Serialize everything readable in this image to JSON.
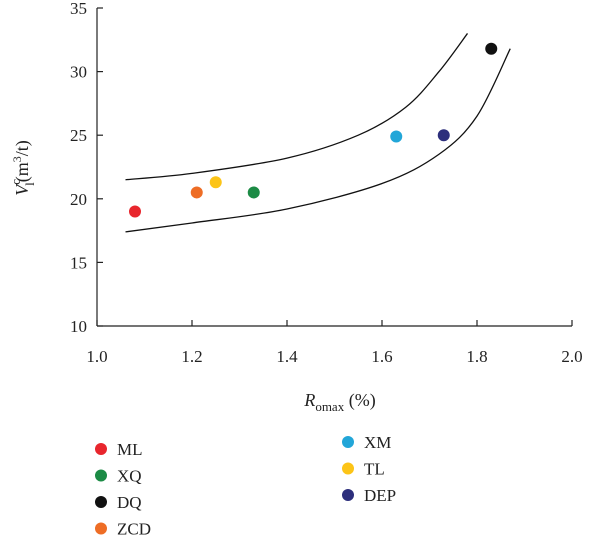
{
  "chart_data": {
    "type": "scatter",
    "xlim": [
      1.0,
      2.0
    ],
    "ylim": [
      10,
      35
    ],
    "xticks": [
      "1.0",
      "1.2",
      "1.4",
      "1.6",
      "1.8",
      "2.0"
    ],
    "yticks": [
      "10",
      "15",
      "20",
      "25",
      "30",
      "35"
    ],
    "xlabel": {
      "main": "R",
      "sub": "omax",
      "unit": " (%)"
    },
    "ylabel": {
      "main": "V",
      "sup": "c",
      "sub": "l",
      "unit": "(m",
      "unit_sup": "3",
      "unit_end": "/t)"
    },
    "grid": false,
    "legend_position": "bottom",
    "points": [
      {
        "name": "ML",
        "x": 1.08,
        "y": 19.0,
        "color": "#e8262d"
      },
      {
        "name": "XQ",
        "x": 1.33,
        "y": 20.5,
        "color": "#1c8b45"
      },
      {
        "name": "DQ",
        "x": 1.83,
        "y": 31.8,
        "color": "#111111"
      },
      {
        "name": "ZCD",
        "x": 1.21,
        "y": 20.5,
        "color": "#ee6d25"
      },
      {
        "name": "XM",
        "x": 1.63,
        "y": 24.9,
        "color": "#22a6d8"
      },
      {
        "name": "TL",
        "x": 1.25,
        "y": 21.3,
        "color": "#fcc417"
      },
      {
        "name": "DEP",
        "x": 1.73,
        "y": 25.0,
        "color": "#2d2f7c"
      }
    ],
    "bands": [
      {
        "name": "",
        "x": [
          1.06,
          1.2,
          1.4,
          1.55,
          1.65,
          1.72,
          1.78
        ],
        "y": [
          21.5,
          22.0,
          23.2,
          25.0,
          27.2,
          30.0,
          33.0
        ]
      },
      {
        "name": "",
        "x": [
          1.06,
          1.2,
          1.4,
          1.6,
          1.72,
          1.8,
          1.87
        ],
        "y": [
          17.4,
          18.1,
          19.2,
          21.2,
          23.5,
          26.5,
          31.8
        ]
      }
    ]
  }
}
